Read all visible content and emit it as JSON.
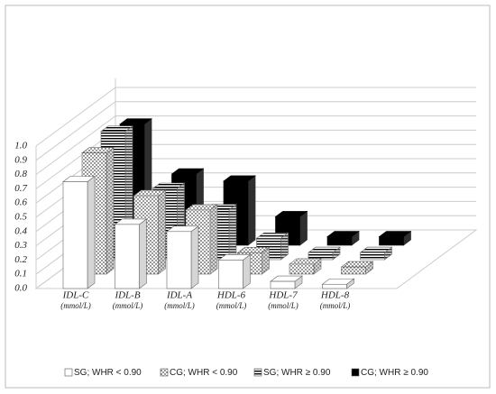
{
  "chart_data": {
    "type": "bar3d",
    "categories": [
      "IDL-C",
      "IDL-B",
      "IDL-A",
      "HDL-6",
      "HDL-7",
      "HDL-8"
    ],
    "category_sublabels": [
      "(mmol/L)",
      "(mmol/L)",
      "(mmol/L)",
      "(mmol/L)",
      "(mmol/L)",
      "(mmol/L)"
    ],
    "series": [
      {
        "name": "SG; WHR < 0.90",
        "color": "#ffffff",
        "pattern": "none",
        "values": [
          0.75,
          0.45,
          0.4,
          0.2,
          0.05,
          0.03
        ]
      },
      {
        "name": "CG; WHR < 0.90",
        "color": "#ffffff",
        "pattern": "dots",
        "values": [
          0.85,
          0.55,
          0.45,
          0.15,
          0.07,
          0.05
        ]
      },
      {
        "name": "SG;  WHR ≥ 0.90",
        "color": "#ffffff",
        "pattern": "stripes",
        "values": [
          0.9,
          0.5,
          0.35,
          0.15,
          0.05,
          0.05
        ]
      },
      {
        "name": "CG;  WHR ≥ 0.90",
        "color": "#000000",
        "pattern": "none",
        "values": [
          0.85,
          0.5,
          0.45,
          0.2,
          0.06,
          0.06
        ]
      }
    ],
    "ylim": [
      0,
      1
    ],
    "yticks": [
      {
        "value": 0,
        "label": "0.0"
      },
      0.1,
      0.2,
      0.3,
      0.4,
      0.5,
      0.6,
      0.7,
      0.8,
      0.9,
      {
        "value": 1,
        "label": "1.0"
      }
    ],
    "grid": true
  }
}
